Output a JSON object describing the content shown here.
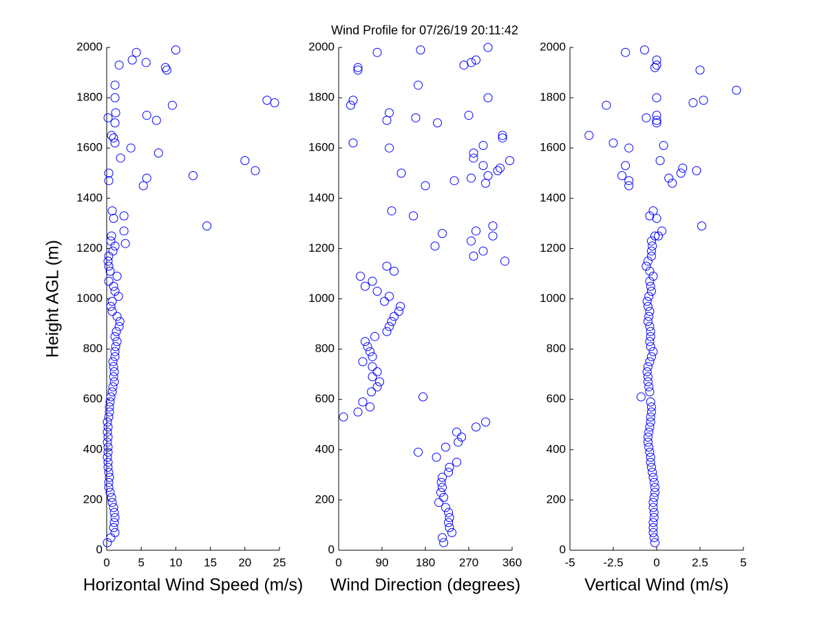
{
  "chart_data": [
    {
      "type": "scatter",
      "title": "Wind Profile for  07/26/19 20:11:42",
      "xlabel": "Horizontal Wind Speed (m/s)",
      "ylabel": "Height AGL (m)",
      "color": "#0000ff",
      "xlim": [
        0,
        25
      ],
      "xticks": [
        0,
        5,
        10,
        15,
        20,
        25
      ],
      "ylim": [
        0,
        2000
      ],
      "yticks": [
        0,
        200,
        400,
        600,
        800,
        1000,
        1200,
        1400,
        1600,
        1800,
        2000
      ],
      "x": [
        0.1,
        0.6,
        1.2,
        1,
        1.1,
        1.2,
        1.1,
        1,
        0.8,
        0.7,
        0.5,
        0.3,
        0.3,
        0.4,
        0.3,
        0.2,
        0.2,
        0.1,
        0.2,
        0.2,
        0.1,
        0.2,
        0.1,
        0.2,
        0.1,
        0.3,
        0.4,
        0.4,
        0.5,
        0.6,
        0.8,
        0.9,
        1.1,
        1,
        1.1,
        1,
        0.9,
        1.2,
        1.2,
        1.3,
        1.5,
        1.2,
        1.4,
        1.8,
        1.9,
        1.5,
        0.8,
        0.6,
        0.8,
        1.7,
        1.2,
        1,
        0.3,
        1.5,
        0.5,
        0.3,
        0.2,
        0.3,
        0.9,
        1.2,
        0.6,
        0.7,
        2.5,
        1,
        0.8,
        2.5,
        2.7,
        14.5,
        5.3,
        5.8,
        12.5,
        20,
        21.5,
        0.3,
        0.3,
        2,
        1.2,
        3.5,
        7.5,
        1,
        0.7,
        0.2,
        1.3,
        1.2,
        5.8,
        7.2,
        9.5,
        1.2,
        1.2,
        23.2,
        24.3,
        8.5,
        8.7,
        1.8,
        3.7,
        4.3,
        5.7,
        10
      ],
      "y": [
        30,
        50,
        70,
        90,
        110,
        130,
        150,
        170,
        190,
        210,
        230,
        250,
        270,
        290,
        310,
        330,
        350,
        370,
        390,
        410,
        430,
        450,
        470,
        490,
        510,
        530,
        550,
        570,
        590,
        610,
        630,
        650,
        670,
        690,
        710,
        730,
        750,
        770,
        790,
        810,
        830,
        850,
        870,
        890,
        910,
        930,
        950,
        970,
        990,
        1010,
        1030,
        1050,
        1070,
        1090,
        1110,
        1130,
        1150,
        1170,
        1190,
        1210,
        1230,
        1250,
        1330,
        1320,
        1350,
        1270,
        1220,
        1290,
        1450,
        1480,
        1490,
        1550,
        1510,
        1500,
        1470,
        1560,
        1620,
        1600,
        1580,
        1640,
        1650,
        1720,
        1740,
        1700,
        1730,
        1710,
        1770,
        1800,
        1850,
        1790,
        1780,
        1920,
        1910,
        1930,
        1950,
        1980,
        1940,
        1990
      ]
    },
    {
      "type": "scatter",
      "xlabel": "Wind Direction (degrees)",
      "color": "#0000ff",
      "xlim": [
        0,
        360
      ],
      "xticks": [
        0,
        90,
        180,
        270,
        360
      ],
      "ylim": [
        0,
        2000
      ],
      "yticks": [
        0,
        200,
        400,
        600,
        800,
        1000,
        1200,
        1400,
        1600,
        1800,
        2000
      ],
      "x": [
        218,
        215,
        235,
        230,
        228,
        230,
        228,
        222,
        208,
        218,
        212,
        215,
        213,
        215,
        228,
        230,
        245,
        203,
        165,
        222,
        248,
        255,
        245,
        285,
        305,
        10,
        40,
        65,
        50,
        175,
        68,
        80,
        85,
        70,
        80,
        70,
        50,
        70,
        65,
        60,
        55,
        75,
        100,
        105,
        110,
        115,
        125,
        128,
        95,
        105,
        80,
        55,
        70,
        45,
        115,
        100,
        345,
        280,
        300,
        200,
        275,
        320,
        180,
        240,
        275,
        305,
        310,
        130,
        330,
        335,
        300,
        355,
        280,
        280,
        105,
        300,
        30,
        340,
        340,
        205,
        100,
        160,
        105,
        270,
        25,
        30,
        310,
        165,
        40,
        40,
        260,
        275,
        285,
        80,
        170,
        310,
        215,
        285,
        320,
        155,
        110
      ],
      "y": [
        30,
        50,
        70,
        90,
        110,
        130,
        150,
        170,
        190,
        210,
        230,
        250,
        270,
        290,
        310,
        330,
        350,
        370,
        390,
        410,
        430,
        450,
        470,
        490,
        510,
        530,
        550,
        570,
        590,
        610,
        630,
        650,
        670,
        690,
        710,
        730,
        750,
        770,
        790,
        810,
        830,
        850,
        870,
        890,
        910,
        930,
        950,
        970,
        990,
        1010,
        1030,
        1050,
        1070,
        1090,
        1110,
        1130,
        1150,
        1170,
        1190,
        1210,
        1230,
        1250,
        1450,
        1470,
        1480,
        1460,
        1490,
        1500,
        1510,
        1520,
        1530,
        1550,
        1560,
        1580,
        1600,
        1610,
        1620,
        1640,
        1650,
        1700,
        1710,
        1720,
        1740,
        1730,
        1770,
        1790,
        1800,
        1850,
        1910,
        1920,
        1930,
        1940,
        1950,
        1980,
        1990,
        2000,
        1260,
        1270,
        1290,
        1330,
        1350
      ]
    },
    {
      "type": "scatter",
      "xlabel": "Vertical Wind (m/s)",
      "color": "#0000ff",
      "xlim": [
        -5,
        5
      ],
      "xticks": [
        -5,
        -2.5,
        0,
        2.5,
        5
      ],
      "ylim": [
        0,
        2000
      ],
      "yticks": [
        0,
        200,
        400,
        600,
        800,
        1000,
        1200,
        1400,
        1600,
        1800,
        2000
      ],
      "x": [
        -0.1,
        -0.15,
        -0.2,
        -0.2,
        -0.2,
        -0.15,
        -0.15,
        -0.2,
        -0.2,
        -0.15,
        -0.1,
        -0.1,
        -0.15,
        -0.2,
        -0.25,
        -0.3,
        -0.35,
        -0.35,
        -0.4,
        -0.45,
        -0.5,
        -0.5,
        -0.45,
        -0.4,
        -0.35,
        -0.35,
        -0.3,
        -0.3,
        -0.35,
        -0.9,
        -0.4,
        -0.45,
        -0.5,
        -0.5,
        -0.55,
        -0.5,
        -0.4,
        -0.3,
        -0.2,
        -0.35,
        -0.4,
        -0.35,
        -0.35,
        -0.4,
        -0.5,
        -0.45,
        -0.4,
        -0.5,
        -0.55,
        -0.45,
        -0.3,
        -0.35,
        -0.4,
        -0.2,
        -0.4,
        -0.6,
        -0.5,
        -0.3,
        -0.3,
        -0.25,
        -0.3,
        -0.1,
        0.3,
        0.1,
        0,
        -0.2,
        -0.4,
        2.6,
        -1.6,
        -1.6,
        -2,
        -1.8,
        1.4,
        1.5,
        2.3,
        0.7,
        0.9,
        0.2,
        -2.5,
        -1.6,
        0.4,
        -3.9,
        -0.6,
        0,
        0,
        0,
        -2.9,
        2.1,
        2.7,
        4.6,
        0,
        -0.1,
        0,
        0,
        2.5,
        -1.8,
        -0.7
      ],
      "y": [
        30,
        50,
        70,
        90,
        110,
        130,
        150,
        170,
        190,
        210,
        230,
        250,
        270,
        290,
        310,
        330,
        350,
        370,
        390,
        410,
        430,
        450,
        470,
        490,
        510,
        530,
        550,
        570,
        590,
        610,
        630,
        650,
        670,
        690,
        710,
        730,
        750,
        770,
        790,
        810,
        830,
        850,
        870,
        890,
        910,
        930,
        950,
        970,
        990,
        1010,
        1030,
        1050,
        1070,
        1090,
        1110,
        1130,
        1150,
        1170,
        1190,
        1210,
        1230,
        1250,
        1270,
        1250,
        1320,
        1350,
        1330,
        1290,
        1450,
        1470,
        1490,
        1530,
        1500,
        1520,
        1510,
        1480,
        1460,
        1550,
        1620,
        1600,
        1610,
        1650,
        1720,
        1730,
        1700,
        1710,
        1770,
        1780,
        1790,
        1830,
        1800,
        1920,
        1930,
        1950,
        1910,
        1980,
        1990
      ]
    }
  ]
}
